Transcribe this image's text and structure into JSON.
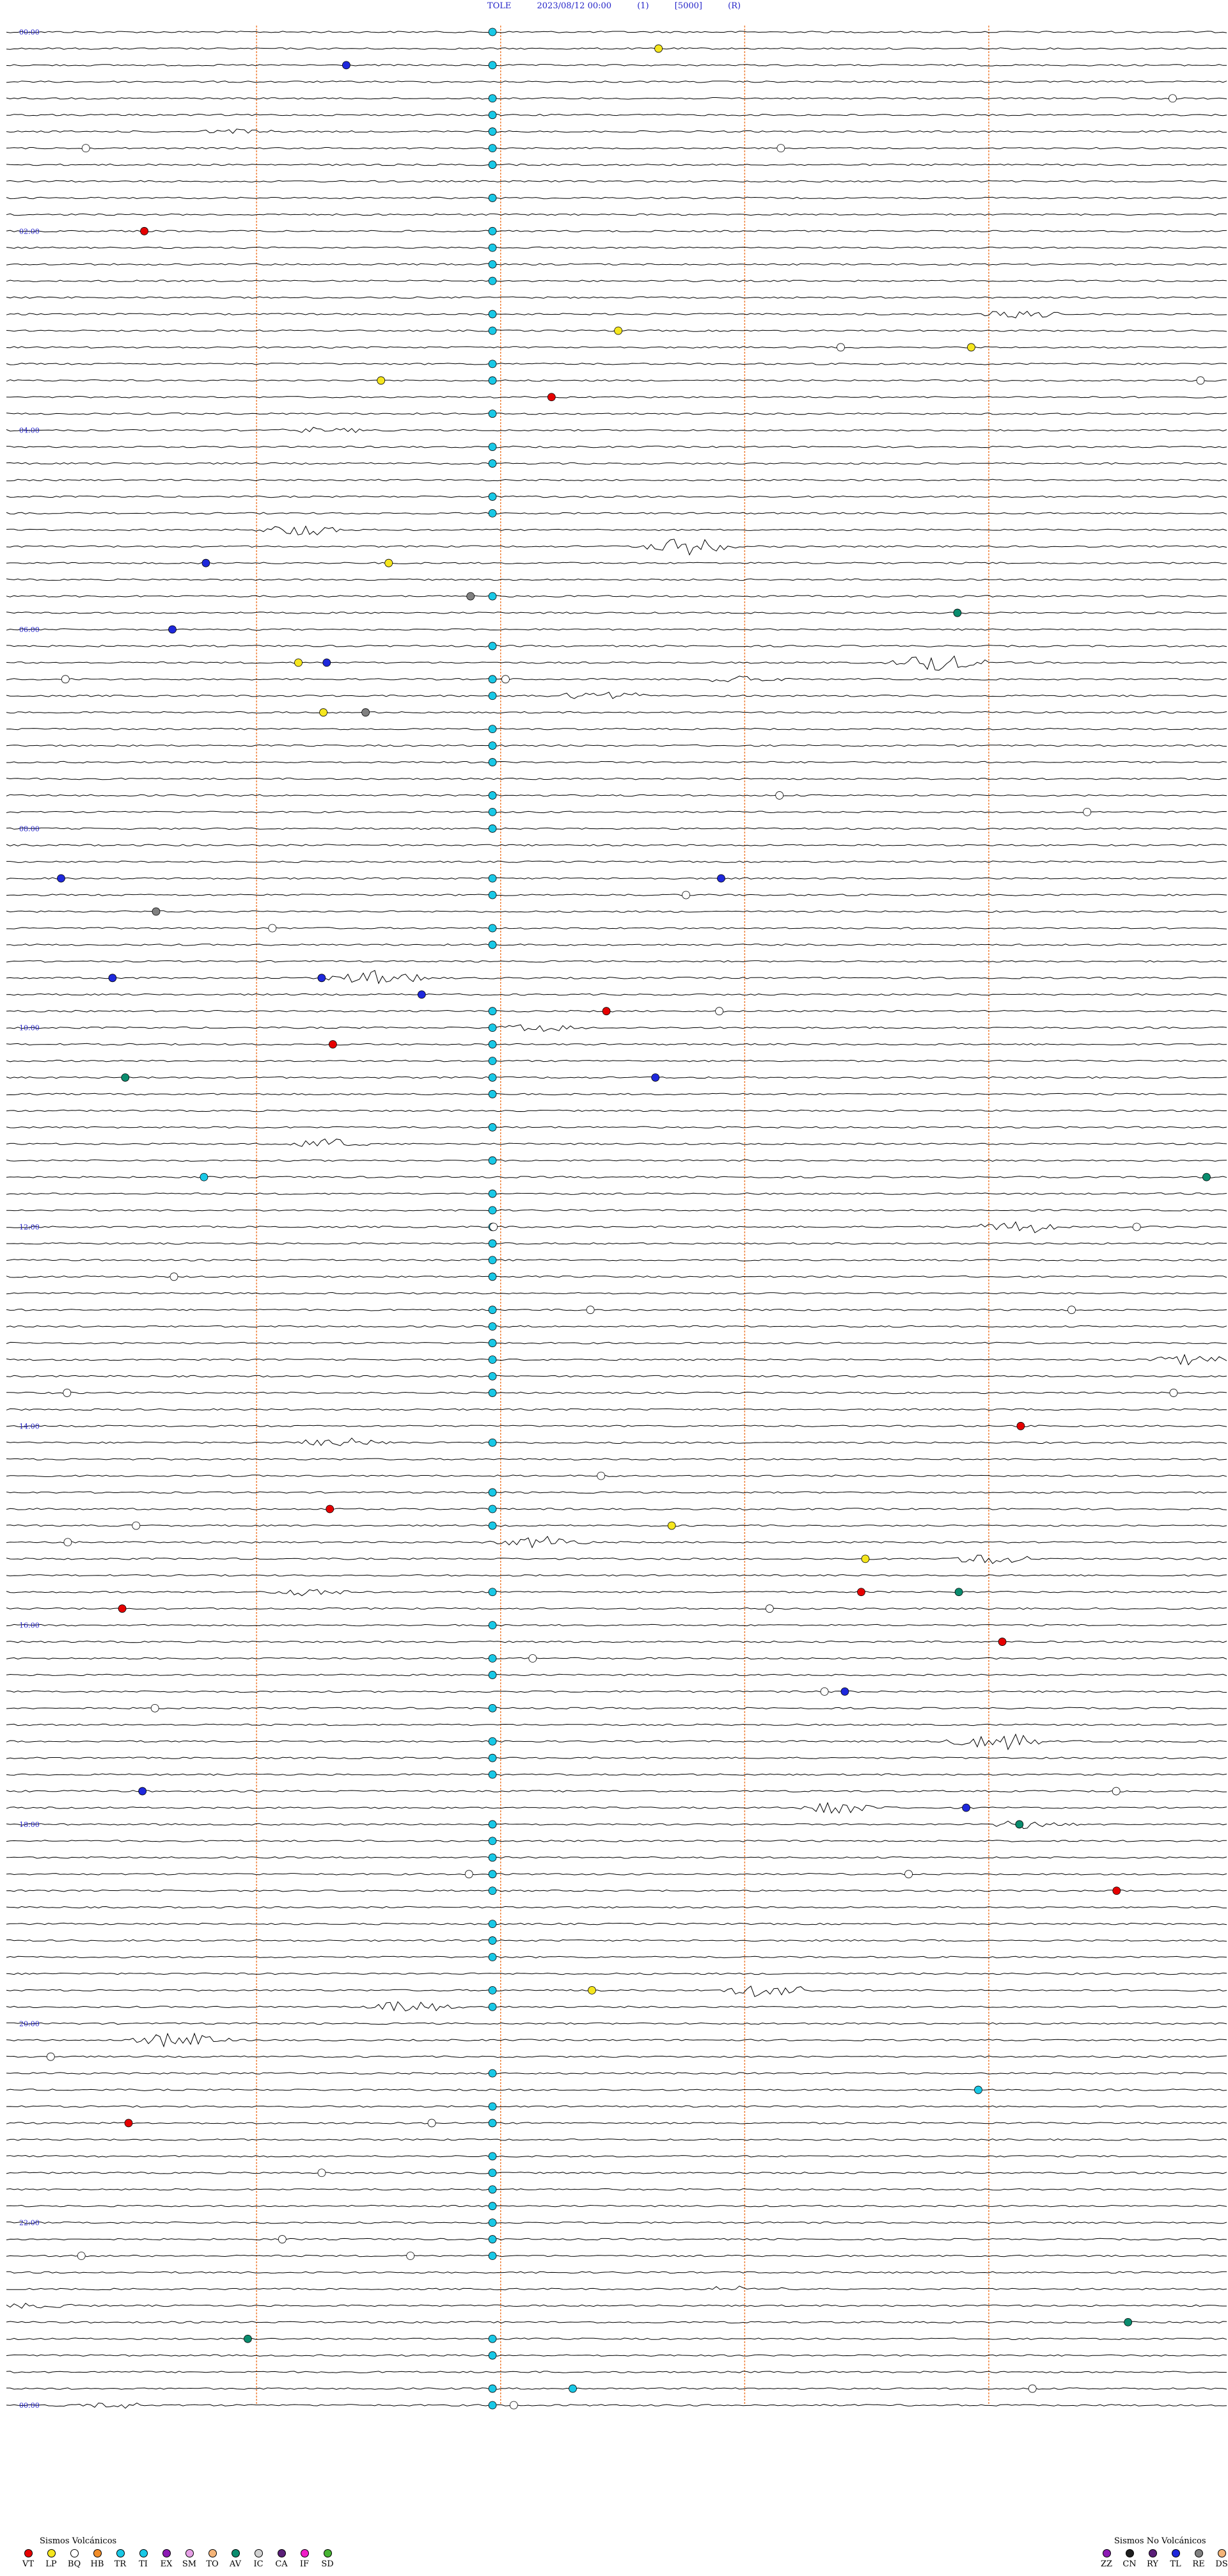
{
  "header": {
    "station": "TOLE",
    "datetime": "2023/08/12 00:00",
    "channel": "(1)",
    "scale": "[5000]",
    "mode": "(R)"
  },
  "chart_data": {
    "type": "helicorder",
    "station": "TOLE",
    "date": "2023/08/12",
    "rows": 144,
    "minutes_per_row": 10,
    "hour_labels": [
      "00:00",
      "02:00",
      "04:00",
      "06:00",
      "08:00",
      "10:00",
      "12:00",
      "14:00",
      "16:00",
      "18:00",
      "20:00",
      "22:00",
      "00:00"
    ],
    "legend_volcanic": {
      "title": "Sismos Volcánicos",
      "items": [
        {
          "code": "VT",
          "color": "#e60000"
        },
        {
          "code": "LP",
          "color": "#f5e61e"
        },
        {
          "code": "BQ",
          "color": "#ffffff"
        },
        {
          "code": "HB",
          "color": "#f08c28"
        },
        {
          "code": "TR",
          "color": "#19c8e6"
        },
        {
          "code": "TI",
          "color": "#19c8e6"
        },
        {
          "code": "EX",
          "color": "#8c19b4"
        },
        {
          "code": "SM",
          "color": "#e6a0e6"
        },
        {
          "code": "TO",
          "color": "#f5b478"
        },
        {
          "code": "AV",
          "color": "#0a8c6e"
        },
        {
          "code": "IC",
          "color": "#d2d2d2"
        },
        {
          "code": "CA",
          "color": "#5a1e78"
        },
        {
          "code": "IF",
          "color": "#f01ec8"
        },
        {
          "code": "SD",
          "color": "#46b432"
        }
      ]
    },
    "legend_non_volcanic": {
      "title": "Sismos No Volcánicos",
      "items": [
        {
          "code": "ZZ",
          "color": "#8c19b4"
        },
        {
          "code": "CN",
          "color": "#1e1e1e"
        },
        {
          "code": "RY",
          "color": "#5a1e78"
        },
        {
          "code": "TL",
          "color": "#1e28dc"
        },
        {
          "code": "RE",
          "color": "#808080"
        },
        {
          "code": "DS",
          "color": "#f5b478"
        }
      ]
    },
    "colors": {
      "trace": "#000000",
      "minute_marker": "#f0823c",
      "hour_label": "#2424c8"
    }
  }
}
